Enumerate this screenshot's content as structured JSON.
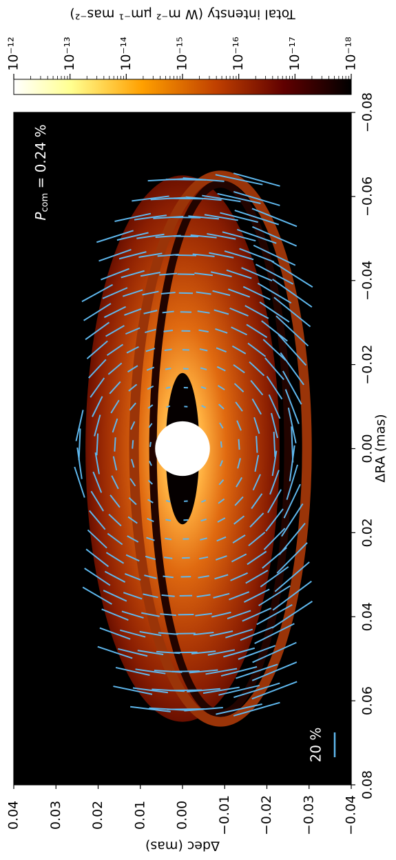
{
  "chart_data": {
    "type": "heatmap",
    "xlabel": "ΔRA (mas)",
    "ylabel": "Δdec (mas)",
    "xlim": [
      -0.08,
      0.08
    ],
    "ylim": [
      -0.04,
      0.04
    ],
    "x_ticks": [
      "−0.08",
      "−0.06",
      "−0.04",
      "−0.02",
      "0.00",
      "0.02",
      "0.04",
      "0.06",
      "0.08"
    ],
    "y_ticks": [
      "0.04",
      "0.03",
      "0.02",
      "0.01",
      "0.00",
      "−0.01",
      "−0.02",
      "−0.03",
      "−0.04"
    ],
    "annotation": "P",
    "annotation_sub": "com",
    "annotation_value": " = 0.24 %",
    "scale_bar_label": "20 %",
    "scale_bar_fraction": 0.2,
    "vector_color": "#5fb8ee",
    "colorbar": {
      "label": "Total intensty (W m⁻² μm⁻¹ mas⁻²)",
      "ticks": [
        "10⁻¹²",
        "10⁻¹³",
        "10⁻¹⁴",
        "10⁻¹⁵",
        "10⁻¹⁶",
        "10⁻¹⁷",
        "10⁻¹⁸"
      ],
      "range": [
        1e-12,
        1e-18
      ],
      "scale": "log",
      "colormap": "afmhot_r"
    },
    "features": {
      "disk_outer_semi_major": 0.065,
      "disk_outer_semi_minor": 0.023,
      "inner_cavity_semi_major": 0.018,
      "inner_cavity_semi_minor": 0.004,
      "central_star_radius": 0.0065,
      "shadow_ring_radius_ra": 0.063,
      "shadow_ring_radius_dec": 0.016,
      "shadow_ring_offset_dec": -0.009
    }
  }
}
